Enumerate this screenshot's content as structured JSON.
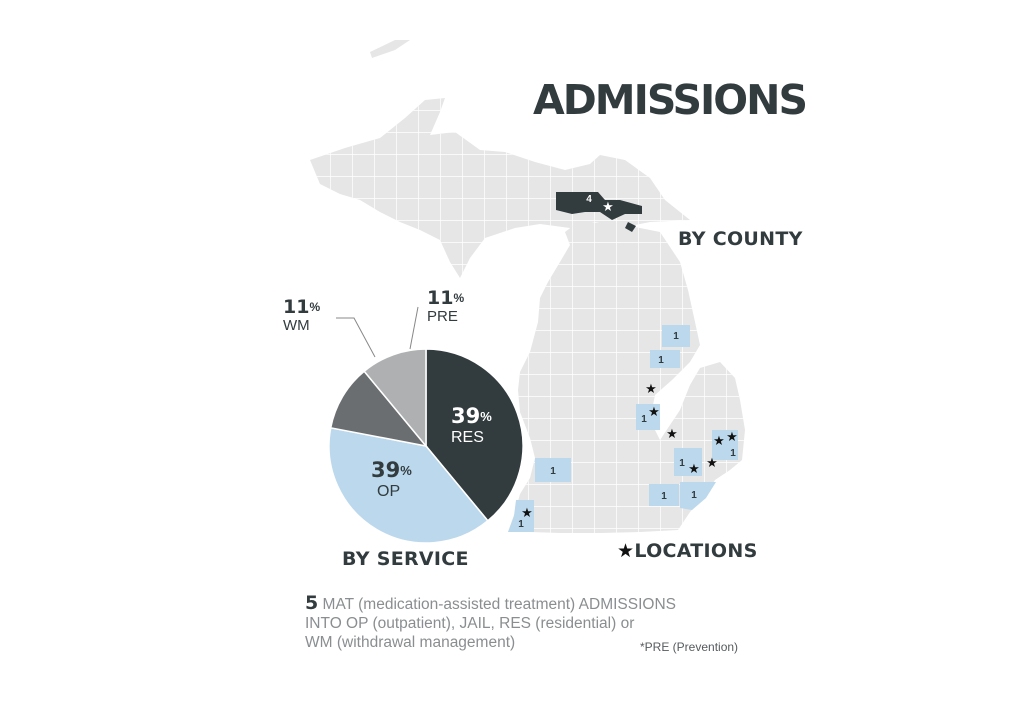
{
  "title": "ADMISSIONS",
  "by_county_label": "BY COUNTY",
  "by_service_label": "BY SERVICE",
  "locations_label": "LOCATIONS",
  "colors": {
    "dark": "#323b3e",
    "light_blue": "#bcd8ec",
    "mid_gray": "#6b6e70",
    "light_gray": "#aeb0b2",
    "land": "#e6e6e6"
  },
  "icons": {
    "location": "star-icon"
  },
  "county_counts": [
    {
      "id": "northern-mi",
      "value": "4",
      "color": "dark"
    },
    {
      "id": "thumb-upper",
      "value": "1",
      "color": "light_blue"
    },
    {
      "id": "thumb-lower",
      "value": "1",
      "color": "light_blue"
    },
    {
      "id": "genesee",
      "value": "1",
      "color": "light_blue"
    },
    {
      "id": "st-clair",
      "value": "1",
      "color": "light_blue"
    },
    {
      "id": "livingston",
      "value": "1",
      "color": "light_blue"
    },
    {
      "id": "kent",
      "value": "1",
      "color": "light_blue"
    },
    {
      "id": "washtenaw",
      "value": "1",
      "color": "light_blue"
    },
    {
      "id": "wayne",
      "value": "1",
      "color": "light_blue"
    },
    {
      "id": "berrien",
      "value": "1",
      "color": "light_blue"
    }
  ],
  "chart_data": {
    "type": "pie",
    "title": "BY SERVICE",
    "slices": [
      {
        "pct": "39",
        "label": "RES",
        "value": 39,
        "color": "#323b3e"
      },
      {
        "pct": "39",
        "label": "OP",
        "value": 39,
        "color": "#bcd8ec"
      },
      {
        "pct": "11",
        "label": "WM",
        "value": 11,
        "color": "#6b6e70"
      },
      {
        "pct": "11",
        "label": "PRE",
        "value": 11,
        "color": "#aeb0b2"
      }
    ],
    "percent_sign": "%"
  },
  "note": {
    "count": "5",
    "text_line1": " MAT (medication-assisted treatment) ADMISSIONS",
    "text_line2": "INTO OP (outpatient), JAIL, RES (residential) or",
    "text_line3": "WM (withdrawal management)"
  },
  "footnote": "*PRE (Prevention)"
}
